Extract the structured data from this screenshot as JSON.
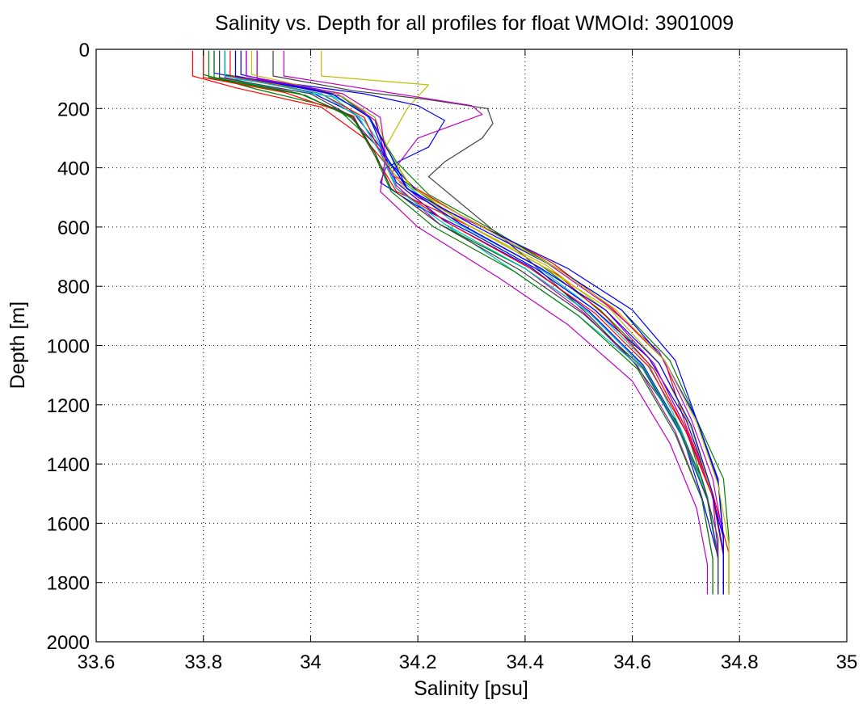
{
  "chart_data": {
    "type": "line",
    "title": "Salinity vs. Depth for all profiles for float WMOId: 3901009",
    "xlabel": "Salinity [psu]",
    "ylabel": "Depth [m]",
    "xlim": [
      33.6,
      35
    ],
    "ylim": [
      0,
      2000
    ],
    "y_reversed": true,
    "grid": true,
    "grid_style": "dotted",
    "xticks": [
      33.6,
      33.8,
      34,
      34.2,
      34.4,
      34.6,
      34.8,
      35
    ],
    "xtick_labels": [
      "33.6",
      "33.8",
      "34",
      "34.2",
      "34.4",
      "34.6",
      "34.8",
      "35"
    ],
    "yticks": [
      0,
      200,
      400,
      600,
      800,
      1000,
      1200,
      1400,
      1600,
      1800,
      2000
    ],
    "ytick_labels": [
      "0",
      "200",
      "400",
      "600",
      "800",
      "1000",
      "1200",
      "1400",
      "1600",
      "1800",
      "2000"
    ],
    "colors": [
      "#0000ff",
      "#008000",
      "#ff0000",
      "#00bfbf",
      "#bf00bf",
      "#bfbf00",
      "#404040"
    ],
    "series": [
      {
        "color": "#ff0000",
        "x": [
          33.78,
          33.78,
          33.86,
          34.02,
          34.1,
          34.16,
          34.28,
          34.45,
          34.56,
          34.66,
          34.7,
          34.75,
          34.78,
          34.78
        ],
        "y": [
          5,
          90,
          130,
          195,
          300,
          430,
          560,
          720,
          870,
          1050,
          1270,
          1500,
          1700,
          1840
        ]
      },
      {
        "color": "#008000",
        "x": [
          33.8,
          33.8,
          33.9,
          34.05,
          34.12,
          34.17,
          34.27,
          34.43,
          34.54,
          34.64,
          34.7,
          34.74,
          34.76,
          34.76
        ],
        "y": [
          5,
          85,
          135,
          200,
          320,
          440,
          570,
          730,
          880,
          1060,
          1280,
          1510,
          1710,
          1840
        ]
      },
      {
        "color": "#0000ff",
        "x": [
          33.82,
          33.82,
          34.0,
          34.08,
          34.13,
          34.16,
          34.25,
          34.41,
          34.52,
          34.62,
          34.69,
          34.73,
          34.76,
          34.76
        ],
        "y": [
          5,
          80,
          145,
          215,
          330,
          450,
          580,
          735,
          885,
          1065,
          1285,
          1515,
          1715,
          1840
        ]
      },
      {
        "color": "#bf00bf",
        "x": [
          33.84,
          33.84,
          33.98,
          34.07,
          34.13,
          34.16,
          34.24,
          34.4,
          34.51,
          34.61,
          34.68,
          34.73,
          34.75,
          34.75
        ],
        "y": [
          5,
          95,
          150,
          220,
          340,
          460,
          590,
          740,
          890,
          1070,
          1290,
          1520,
          1720,
          1840
        ]
      },
      {
        "color": "#00bfbf",
        "x": [
          33.86,
          33.86,
          34.02,
          34.1,
          34.14,
          34.17,
          34.26,
          34.42,
          34.53,
          34.63,
          34.69,
          34.74,
          34.76,
          34.76
        ],
        "y": [
          5,
          100,
          140,
          210,
          320,
          445,
          575,
          730,
          880,
          1060,
          1280,
          1510,
          1710,
          1840
        ]
      },
      {
        "color": "#bfbf00",
        "x": [
          34.02,
          34.02,
          34.22,
          34.18,
          34.14,
          34.18,
          34.28,
          34.44,
          34.55,
          34.65,
          34.71,
          34.75,
          34.77,
          34.77
        ],
        "y": [
          5,
          90,
          120,
          200,
          330,
          450,
          580,
          730,
          880,
          1060,
          1280,
          1510,
          1710,
          1840
        ]
      },
      {
        "color": "#404040",
        "x": [
          33.93,
          33.93,
          34.08,
          34.22,
          34.33,
          34.34,
          34.32,
          34.25,
          34.22,
          34.3,
          34.4,
          34.52,
          34.6,
          34.68,
          34.73,
          34.76,
          34.76
        ],
        "y": [
          5,
          90,
          140,
          170,
          200,
          250,
          300,
          380,
          430,
          550,
          700,
          900,
          1050,
          1250,
          1450,
          1650,
          1840
        ]
      },
      {
        "color": "#0000ff",
        "x": [
          33.9,
          33.9,
          34.1,
          34.2,
          34.25,
          34.22,
          34.14,
          34.13,
          34.2,
          34.3,
          34.42,
          34.53,
          34.63,
          34.7,
          34.74,
          34.77,
          34.77
        ],
        "y": [
          5,
          100,
          150,
          190,
          240,
          330,
          400,
          450,
          530,
          620,
          740,
          880,
          1040,
          1250,
          1450,
          1650,
          1840
        ]
      },
      {
        "color": "#bf00bf",
        "x": [
          33.95,
          33.95,
          34.3,
          34.32,
          34.2,
          34.15,
          34.2,
          34.32,
          34.44,
          34.55,
          34.65,
          34.71,
          34.75,
          34.77,
          34.77
        ],
        "y": [
          5,
          90,
          190,
          220,
          300,
          420,
          500,
          600,
          720,
          860,
          1020,
          1250,
          1450,
          1650,
          1840
        ]
      },
      {
        "color": "#008000",
        "x": [
          33.84,
          33.84,
          34.05,
          34.11,
          34.16,
          34.22,
          34.34,
          34.46,
          34.58,
          34.67,
          34.72,
          34.77,
          34.78,
          34.78
        ],
        "y": [
          5,
          85,
          150,
          230,
          380,
          490,
          610,
          740,
          880,
          1050,
          1250,
          1450,
          1650,
          1840
        ]
      },
      {
        "color": "#ff0000",
        "x": [
          33.8,
          33.8,
          33.95,
          34.08,
          34.12,
          34.16,
          34.3,
          34.46,
          34.55,
          34.64,
          34.7,
          34.75,
          34.77,
          34.77
        ],
        "y": [
          5,
          95,
          145,
          225,
          360,
          480,
          600,
          760,
          900,
          1080,
          1290,
          1510,
          1710,
          1840
        ]
      },
      {
        "color": "#0000ff",
        "x": [
          33.88,
          33.88,
          34.05,
          34.12,
          34.14,
          34.2,
          34.32,
          34.48,
          34.6,
          34.68,
          34.72,
          34.76,
          34.77,
          34.77
        ],
        "y": [
          5,
          90,
          150,
          230,
          370,
          480,
          600,
          740,
          880,
          1050,
          1250,
          1450,
          1650,
          1840
        ]
      },
      {
        "color": "#00bfbf",
        "x": [
          33.83,
          33.83,
          34.04,
          34.1,
          34.14,
          34.16,
          34.25,
          34.38,
          34.5,
          34.62,
          34.69,
          34.74,
          34.76,
          34.76
        ],
        "y": [
          5,
          100,
          160,
          240,
          350,
          470,
          590,
          750,
          900,
          1080,
          1300,
          1520,
          1720,
          1840
        ]
      },
      {
        "color": "#bfbf00",
        "x": [
          33.86,
          33.86,
          34.02,
          34.09,
          34.13,
          34.17,
          34.29,
          34.44,
          34.56,
          34.65,
          34.71,
          34.75,
          34.77,
          34.77
        ],
        "y": [
          5,
          90,
          150,
          230,
          350,
          460,
          590,
          740,
          880,
          1060,
          1280,
          1510,
          1710,
          1840
        ]
      },
      {
        "color": "#008000",
        "x": [
          33.82,
          33.82,
          33.98,
          34.08,
          34.12,
          34.15,
          34.24,
          34.4,
          34.52,
          34.62,
          34.69,
          34.74,
          34.76,
          34.76
        ],
        "y": [
          5,
          95,
          150,
          230,
          350,
          470,
          590,
          740,
          890,
          1070,
          1290,
          1520,
          1720,
          1840
        ]
      },
      {
        "color": "#bf00bf",
        "x": [
          33.9,
          33.9,
          34.06,
          34.12,
          34.14,
          34.18,
          34.28,
          34.43,
          34.55,
          34.64,
          34.7,
          34.75,
          34.76,
          34.76
        ],
        "y": [
          5,
          100,
          160,
          240,
          360,
          470,
          590,
          740,
          880,
          1060,
          1280,
          1510,
          1710,
          1840
        ]
      },
      {
        "color": "#ff0000",
        "x": [
          33.85,
          33.85,
          34.02,
          34.1,
          34.13,
          34.16,
          34.26,
          34.41,
          34.53,
          34.63,
          34.7,
          34.75,
          34.77,
          34.77
        ],
        "y": [
          5,
          90,
          150,
          230,
          350,
          470,
          590,
          740,
          890,
          1070,
          1290,
          1510,
          1710,
          1840
        ]
      },
      {
        "color": "#0000ff",
        "x": [
          33.87,
          33.87,
          34.04,
          34.11,
          34.14,
          34.18,
          34.3,
          34.46,
          34.58,
          34.66,
          34.72,
          34.76,
          34.77,
          34.77
        ],
        "y": [
          5,
          85,
          150,
          230,
          360,
          470,
          590,
          740,
          880,
          1050,
          1250,
          1460,
          1660,
          1840
        ]
      },
      {
        "color": "#008000",
        "x": [
          33.81,
          33.81,
          33.99,
          34.08,
          34.12,
          34.15,
          34.23,
          34.38,
          34.5,
          34.61,
          34.68,
          34.73,
          34.75,
          34.75
        ],
        "y": [
          5,
          95,
          155,
          235,
          360,
          480,
          600,
          750,
          900,
          1080,
          1300,
          1520,
          1720,
          1840
        ]
      },
      {
        "color": "#bfbf00",
        "x": [
          33.89,
          33.89,
          34.05,
          34.12,
          34.15,
          34.19,
          34.31,
          34.46,
          34.57,
          34.66,
          34.72,
          34.76,
          34.78,
          34.78
        ],
        "y": [
          5,
          85,
          150,
          230,
          360,
          470,
          590,
          740,
          880,
          1050,
          1260,
          1470,
          1670,
          1840
        ]
      },
      {
        "color": "#00bfbf",
        "x": [
          33.84,
          33.84,
          34.02,
          34.09,
          34.13,
          34.16,
          34.25,
          34.4,
          34.52,
          34.62,
          34.69,
          34.74,
          34.76,
          34.76
        ],
        "y": [
          5,
          90,
          150,
          230,
          350,
          470,
          590,
          740,
          890,
          1070,
          1290,
          1520,
          1720,
          1840
        ]
      },
      {
        "color": "#404040",
        "x": [
          33.83,
          33.83,
          34.0,
          34.08,
          34.12,
          34.15,
          34.24,
          34.39,
          34.51,
          34.62,
          34.69,
          34.74,
          34.76,
          34.76
        ],
        "y": [
          5,
          95,
          150,
          230,
          350,
          470,
          590,
          745,
          895,
          1075,
          1295,
          1520,
          1720,
          1840
        ]
      },
      {
        "color": "#bf00bf",
        "x": [
          33.88,
          33.88,
          34.06,
          34.13,
          34.14,
          34.13,
          34.2,
          34.35,
          34.48,
          34.6,
          34.67,
          34.72,
          34.74,
          34.74
        ],
        "y": [
          5,
          90,
          150,
          230,
          360,
          480,
          600,
          770,
          930,
          1120,
          1330,
          1550,
          1740,
          1840
        ]
      },
      {
        "color": "#0000ff",
        "x": [
          33.86,
          33.86,
          34.04,
          34.11,
          34.15,
          34.18,
          34.28,
          34.43,
          34.55,
          34.65,
          34.71,
          34.75,
          34.77,
          34.77
        ],
        "y": [
          5,
          90,
          150,
          230,
          360,
          470,
          590,
          740,
          880,
          1060,
          1270,
          1500,
          1700,
          1840
        ]
      }
    ]
  }
}
